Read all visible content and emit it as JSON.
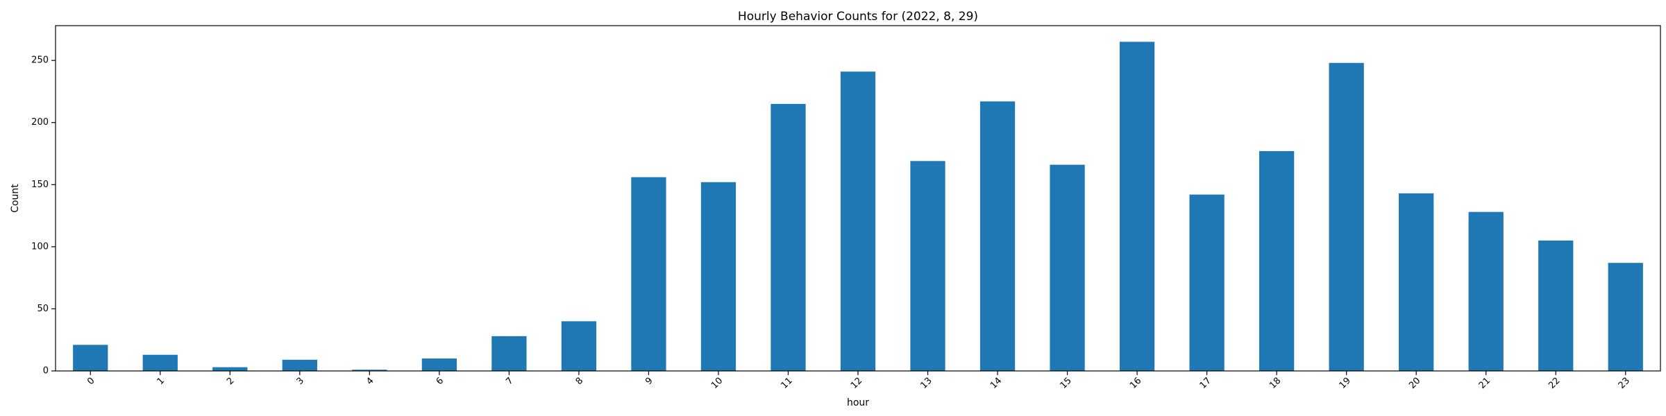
{
  "chart_data": {
    "type": "bar",
    "title": "Hourly Behavior Counts for (2022, 8, 29)",
    "xlabel": "hour",
    "ylabel": "Count",
    "categories": [
      "0",
      "1",
      "2",
      "3",
      "4",
      "6",
      "7",
      "8",
      "9",
      "10",
      "11",
      "12",
      "13",
      "14",
      "15",
      "16",
      "17",
      "18",
      "19",
      "20",
      "21",
      "22",
      "23"
    ],
    "values": [
      21,
      13,
      3,
      9,
      1,
      10,
      28,
      40,
      156,
      152,
      215,
      241,
      169,
      217,
      166,
      265,
      142,
      177,
      248,
      143,
      128,
      105,
      87
    ],
    "ylim": [
      0,
      278
    ],
    "yticks": [
      0,
      50,
      100,
      150,
      200,
      250
    ],
    "bar_color": "#1f77b4",
    "grid": false,
    "legend": "none",
    "xtick_rotation": 45
  }
}
